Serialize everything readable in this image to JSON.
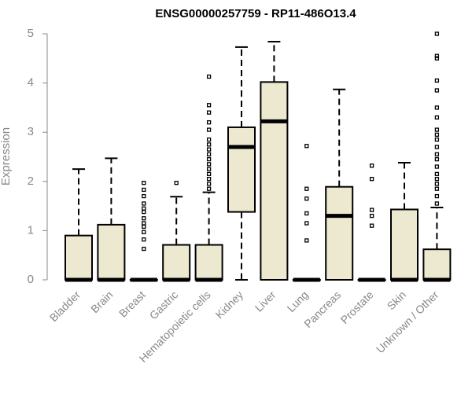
{
  "chart_data": {
    "type": "box",
    "title": "ENSG00000257759 - RP11-486O13.4",
    "ylabel": "Expression",
    "xlabel": "",
    "ylim": [
      0,
      5
    ],
    "yticks": [
      0,
      1,
      2,
      3,
      4,
      5
    ],
    "grid": false,
    "box_fill": "#ede8d0",
    "box_stroke": "#000000",
    "categories": [
      "Bladder",
      "Brain",
      "Breast",
      "Gastric",
      "Hematopoietic cells",
      "Kidney",
      "Liver",
      "Lung",
      "Pancreas",
      "Prostate",
      "Skin",
      "Unknown / Other"
    ],
    "boxes": [
      {
        "min": 0,
        "q1": 0,
        "median": 0,
        "q3": 0.9,
        "max": 2.25,
        "outliers": []
      },
      {
        "min": 0,
        "q1": 0,
        "median": 0,
        "q3": 1.12,
        "max": 2.47,
        "outliers": []
      },
      {
        "min": 0,
        "q1": 0,
        "median": 0,
        "q3": 0,
        "max": 0,
        "outliers": [
          0.63,
          0.82,
          0.97,
          1.08,
          1.15,
          1.25,
          1.38,
          1.45,
          1.55,
          1.7,
          1.83,
          1.97
        ]
      },
      {
        "min": 0,
        "q1": 0,
        "median": 0,
        "q3": 0.71,
        "max": 1.69,
        "outliers": [
          1.97
        ]
      },
      {
        "min": 0,
        "q1": 0,
        "median": 0,
        "q3": 0.71,
        "max": 1.78,
        "outliers": [
          1.85,
          1.95,
          2.05,
          2.15,
          2.25,
          2.35,
          2.45,
          2.55,
          2.65,
          2.75,
          2.85,
          3.05,
          3.2,
          3.4,
          3.55,
          4.13
        ]
      },
      {
        "min": 0,
        "q1": 1.38,
        "median": 2.7,
        "q3": 3.1,
        "max": 4.73,
        "outliers": []
      },
      {
        "min": 0,
        "q1": 0,
        "median": 3.22,
        "q3": 4.02,
        "max": 4.84,
        "outliers": []
      },
      {
        "min": 0,
        "q1": 0,
        "median": 0,
        "q3": 0,
        "max": 0,
        "outliers": [
          0.8,
          1.15,
          1.35,
          1.65,
          1.85,
          2.72
        ]
      },
      {
        "min": 0,
        "q1": 0,
        "median": 1.3,
        "q3": 1.89,
        "max": 3.87,
        "outliers": []
      },
      {
        "min": 0,
        "q1": 0,
        "median": 0,
        "q3": 0,
        "max": 0,
        "outliers": [
          1.1,
          1.3,
          1.42,
          2.05,
          2.32
        ]
      },
      {
        "min": 0,
        "q1": 0,
        "median": 0,
        "q3": 1.43,
        "max": 2.38,
        "outliers": []
      },
      {
        "min": 0,
        "q1": 0,
        "median": 0,
        "q3": 0.62,
        "max": 1.47,
        "outliers": [
          1.55,
          1.7,
          1.85,
          1.95,
          2.05,
          2.15,
          2.3,
          2.45,
          2.55,
          2.7,
          2.85,
          2.95,
          3.05,
          3.3,
          3.5,
          3.85,
          4.05,
          4.5,
          4.55,
          5.0
        ]
      }
    ]
  }
}
